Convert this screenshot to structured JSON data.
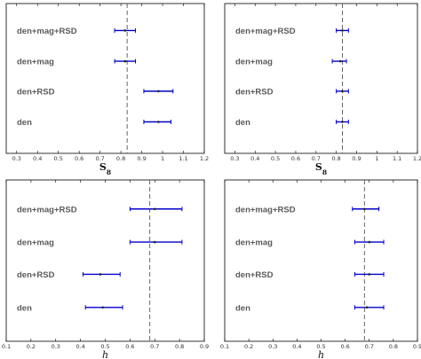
{
  "chart_data": [
    {
      "type": "errorbar",
      "xlabel": "S8",
      "xlim": [
        0.25,
        1.2
      ],
      "xticks": [
        "0.3",
        "0.4",
        "0.5",
        "0.6",
        "0.7",
        "0.8",
        "0.9",
        "1",
        "1.1",
        "1.2"
      ],
      "reference_line": 0.83,
      "categories": [
        "den+mag+RSD",
        "den+mag",
        "den+RSD",
        "den"
      ],
      "points": [
        {
          "category": "den+mag+RSD",
          "value": 0.82,
          "low": 0.77,
          "high": 0.87
        },
        {
          "category": "den+mag",
          "value": 0.82,
          "low": 0.77,
          "high": 0.87
        },
        {
          "category": "den+RSD",
          "value": 0.98,
          "low": 0.91,
          "high": 1.05
        },
        {
          "category": "den",
          "value": 0.98,
          "low": 0.91,
          "high": 1.04
        }
      ],
      "grid": false
    },
    {
      "type": "errorbar",
      "xlabel": "S8",
      "xlim": [
        0.25,
        1.2
      ],
      "xticks": [
        "0.3",
        "0.4",
        "0.5",
        "0.6",
        "0.7",
        "0.8",
        "0.9",
        "1",
        "1.1",
        "1.2"
      ],
      "reference_line": 0.83,
      "categories": [
        "den+mag+RSD",
        "den+mag",
        "den+RSD",
        "den"
      ],
      "points": [
        {
          "category": "den+mag+RSD",
          "value": 0.83,
          "low": 0.8,
          "high": 0.86
        },
        {
          "category": "den+mag",
          "value": 0.82,
          "low": 0.78,
          "high": 0.85
        },
        {
          "category": "den+RSD",
          "value": 0.83,
          "low": 0.8,
          "high": 0.86
        },
        {
          "category": "den",
          "value": 0.83,
          "low": 0.8,
          "high": 0.86
        }
      ],
      "grid": false
    },
    {
      "type": "errorbar",
      "xlabel": "h",
      "xlim": [
        0.1,
        0.9
      ],
      "xticks": [
        "0.1",
        "0.2",
        "0.3",
        "0.4",
        "0.5",
        "0.6",
        "0.7",
        "0.8",
        "0.9"
      ],
      "reference_line": 0.68,
      "categories": [
        "den+mag+RSD",
        "den+mag",
        "den+RSD",
        "den"
      ],
      "points": [
        {
          "category": "den+mag+RSD",
          "value": 0.7,
          "low": 0.6,
          "high": 0.81
        },
        {
          "category": "den+mag",
          "value": 0.7,
          "low": 0.6,
          "high": 0.81
        },
        {
          "category": "den+RSD",
          "value": 0.48,
          "low": 0.41,
          "high": 0.56
        },
        {
          "category": "den",
          "value": 0.49,
          "low": 0.42,
          "high": 0.57
        }
      ],
      "grid": false
    },
    {
      "type": "errorbar",
      "xlabel": "h",
      "xlim": [
        0.1,
        0.9
      ],
      "xticks": [
        "0.1",
        "0.2",
        "0.3",
        "0.4",
        "0.5",
        "0.6",
        "0.7",
        "0.8",
        "0.9"
      ],
      "reference_line": 0.68,
      "categories": [
        "den+mag+RSD",
        "den+mag",
        "den+RSD",
        "den"
      ],
      "points": [
        {
          "category": "den+mag+RSD",
          "value": 0.68,
          "low": 0.63,
          "high": 0.74
        },
        {
          "category": "den+mag",
          "value": 0.7,
          "low": 0.64,
          "high": 0.76
        },
        {
          "category": "den+RSD",
          "value": 0.7,
          "low": 0.64,
          "high": 0.76
        },
        {
          "category": "den",
          "value": 0.69,
          "low": 0.64,
          "high": 0.76
        }
      ],
      "grid": false
    }
  ],
  "colors": {
    "errorbar": "#0000cc",
    "reference_line": "#555555",
    "axes": "#000000"
  }
}
